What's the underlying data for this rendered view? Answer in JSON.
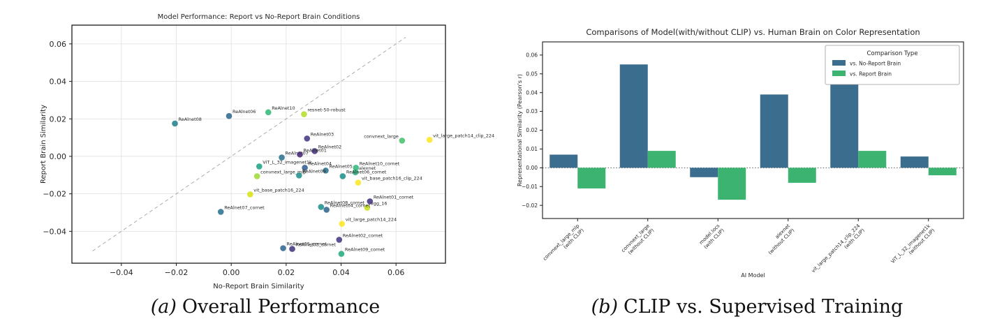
{
  "figures": {
    "a": {
      "caption_prefix": "(a)",
      "caption_text": "Overall Performance"
    },
    "b": {
      "caption_prefix": "(b)",
      "caption_text": "CLIP vs. Supervised Training"
    }
  },
  "chart_data": [
    {
      "type": "scatter",
      "title": "Model Performance: Report vs No-Report Brain Conditions",
      "xlabel": "No-Report Brain Similarity",
      "ylabel": "Report Brain Similarity",
      "xlim": [
        -0.058,
        0.078
      ],
      "ylim": [
        -0.057,
        0.07
      ],
      "xticks": [
        -0.04,
        -0.02,
        0,
        0.02,
        0.04,
        0.06
      ],
      "yticks": [
        -0.04,
        -0.02,
        0,
        0.02,
        0.04,
        0.06
      ],
      "grid": true,
      "identity_line": {
        "style": "dashed",
        "color": "#a3a3a3",
        "from": [
          -0.0505,
          -0.0505
        ],
        "to": [
          0.0635,
          0.0635
        ]
      },
      "points": [
        {
          "label": "ReAlnet08",
          "x": -0.0205,
          "y": 0.0175,
          "color": "#26828e"
        },
        {
          "label": "ReAlnet06",
          "x": -0.0008,
          "y": 0.0215,
          "color": "#31688e"
        },
        {
          "label": "ReAlnet10",
          "x": 0.0135,
          "y": 0.0235,
          "color": "#35b779"
        },
        {
          "label": "resnet-50-robust",
          "x": 0.0265,
          "y": 0.0225,
          "color": "#b5de2b"
        },
        {
          "label": "ReAlnet03",
          "x": 0.0276,
          "y": 0.0095,
          "color": "#443983"
        },
        {
          "label": "ReAlnet02",
          "x": 0.0304,
          "y": 0.0028,
          "color": "#46327e"
        },
        {
          "label": "ReAlnet07",
          "x": 0.0184,
          "y": -0.0006,
          "color": "#2c728e"
        },
        {
          "label": "ReAlnet01",
          "x": 0.025,
          "y": 0.001,
          "color": "#482878"
        },
        {
          "label": "ViT_L_32_imagenet1k",
          "x": 0.0102,
          "y": -0.0054,
          "color": "#20a486"
        },
        {
          "label": "convnext_large_mlp",
          "x": 0.0094,
          "y": -0.0106,
          "color": "#a0da39"
        },
        {
          "label": "ReAlnet04",
          "x": 0.0268,
          "y": -0.0061,
          "color": "#355f8d"
        },
        {
          "label": "ReAlnet05",
          "x": 0.0344,
          "y": -0.0076,
          "color": "#2c728e"
        },
        {
          "label": "ReAlnet09",
          "x": 0.0247,
          "y": -0.0102,
          "color": "#21918c"
        },
        {
          "label": "ReAlnet10_cornet",
          "x": 0.0454,
          "y": -0.0061,
          "color": "#35b779"
        },
        {
          "label": "alexnet",
          "x": 0.0452,
          "y": -0.0085,
          "color": "#2db27d"
        },
        {
          "label": "ReAlnet06_cornet",
          "x": 0.0406,
          "y": -0.0106,
          "color": "#21918c"
        },
        {
          "label": "vit_base_patch16_clip_224",
          "x": 0.0462,
          "y": -0.014,
          "color": "#fde725"
        },
        {
          "label": "vit_base_patch16_224",
          "x": 0.0069,
          "y": -0.0203,
          "color": "#d8e219"
        },
        {
          "label": "ReAlnet07_cornet",
          "x": -0.0038,
          "y": -0.0296,
          "color": "#2c728e"
        },
        {
          "label": "ReAlnet01_cornet",
          "x": 0.0505,
          "y": -0.024,
          "color": "#46327e"
        },
        {
          "label": "vgg_16",
          "x": 0.0495,
          "y": -0.0274,
          "color": "#c8e020"
        },
        {
          "label": "ReAlnet08_cornet",
          "x": 0.0327,
          "y": -0.027,
          "color": "#21918c"
        },
        {
          "label": "ReAlnet04_cornet",
          "x": 0.0347,
          "y": -0.0285,
          "color": "#31688e"
        },
        {
          "label": "vit_large_patch14_224",
          "x": 0.0403,
          "y": -0.036,
          "color": "#fde725"
        },
        {
          "label": "ReAlnet02_cornet",
          "x": 0.0393,
          "y": -0.0445,
          "color": "#443983"
        },
        {
          "label": "ReAlnet09_cornet",
          "x": 0.0401,
          "y": -0.052,
          "color": "#27ad81"
        },
        {
          "label": "ReAlnet05_cornet",
          "x": 0.0189,
          "y": -0.049,
          "color": "#31688e"
        },
        {
          "label": "ReAlnet03_cornet",
          "x": 0.0222,
          "y": -0.0494,
          "color": "#453781"
        },
        {
          "label": "convnext_large",
          "x": 0.0622,
          "y": 0.0084,
          "color": "#4ac16d",
          "anchor": "end"
        },
        {
          "label": "vit_large_patch14_clip_224",
          "x": 0.0722,
          "y": 0.0088,
          "color": "#fde725"
        }
      ]
    },
    {
      "type": "bar",
      "title": "Comparisons of Model(with/without CLIP) vs. Human Brain on Color Representation",
      "xlabel": "AI Model",
      "ylabel": "Representational Similarity (Pearson's r)",
      "ylim": [
        -0.027,
        0.067
      ],
      "yticks": [
        -0.02,
        -0.01,
        0,
        0.01,
        0.02,
        0.03,
        0.04,
        0.05,
        0.06
      ],
      "zero_line": {
        "style": "dotted",
        "color": "#555555"
      },
      "legend": {
        "title": "Comparison Type",
        "position": "upper right"
      },
      "categories": [
        [
          "convnext_large_mlp",
          "(with CLIP)"
        ],
        [
          "convnext_large",
          "(without CLIP)"
        ],
        [
          "model.locs",
          "(with CLIP)"
        ],
        [
          "alexnet",
          "(without CLIP)"
        ],
        [
          "vit_large_patch14_clip_224",
          "(with CLIP)"
        ],
        [
          "ViT_L_32_imagenet1k",
          "(without CLIP)"
        ]
      ],
      "series": [
        {
          "name": "vs. No-Report Brain",
          "color": "#3a6d8e",
          "values": [
            0.007,
            0.055,
            -0.005,
            0.039,
            0.064,
            0.006
          ]
        },
        {
          "name": "vs. Report Brain",
          "color": "#3cb371",
          "values": [
            -0.011,
            0.009,
            -0.017,
            -0.008,
            0.009,
            -0.004
          ]
        }
      ]
    }
  ]
}
